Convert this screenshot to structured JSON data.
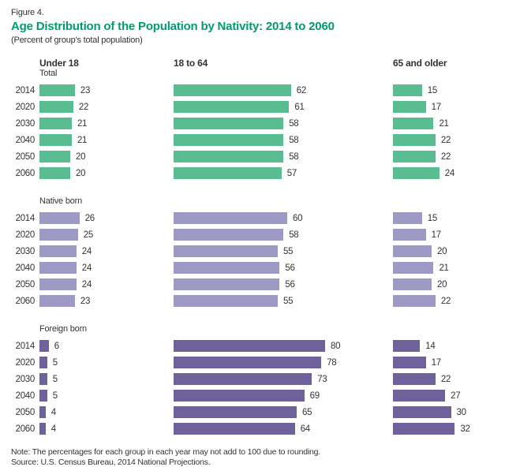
{
  "figure": {
    "label": "Figure 4.",
    "title": "Age Distribution of the Population by Nativity: 2014 to 2060",
    "subtitle": "(Percent of group's total population)"
  },
  "chart_data": {
    "type": "bar",
    "orientation": "horizontal",
    "title": "Age Distribution of the Population by Nativity: 2014 to 2060",
    "subtitle": "(Percent of group's total population)",
    "value_unit": "percent",
    "xlim": [
      0,
      100
    ],
    "grid": false,
    "axes_shown": false,
    "value_labels": "end-of-bar",
    "columns": [
      "Under 18",
      "18 to 64",
      "65 and older"
    ],
    "categories": [
      "2014",
      "2020",
      "2030",
      "2040",
      "2050",
      "2060"
    ],
    "groups": [
      {
        "name": "Total",
        "color": "#5abd91",
        "values": [
          [
            23,
            62,
            15
          ],
          [
            22,
            61,
            17
          ],
          [
            21,
            58,
            21
          ],
          [
            21,
            58,
            22
          ],
          [
            20,
            58,
            22
          ],
          [
            20,
            57,
            24
          ]
        ]
      },
      {
        "name": "Native born",
        "color": "#9c99c4",
        "values": [
          [
            26,
            60,
            15
          ],
          [
            25,
            58,
            17
          ],
          [
            24,
            55,
            20
          ],
          [
            24,
            56,
            21
          ],
          [
            24,
            56,
            20
          ],
          [
            23,
            55,
            22
          ]
        ]
      },
      {
        "name": "Foreign born",
        "color": "#6f6199",
        "values": [
          [
            6,
            80,
            14
          ],
          [
            5,
            78,
            17
          ],
          [
            5,
            73,
            22
          ],
          [
            5,
            69,
            27
          ],
          [
            4,
            65,
            30
          ],
          [
            4,
            64,
            32
          ]
        ]
      }
    ]
  },
  "footer": {
    "note": "Note: The percentages for each group in each year may not add to 100 due to rounding.",
    "source": "Source: U.S. Census Bureau, 2014 National Projections."
  },
  "colors": {
    "title_accent": "#009b70",
    "text": "#333333",
    "total_bar": "#5abd91",
    "native_born_bar": "#9c99c4",
    "foreign_born_bar": "#6f6199"
  }
}
